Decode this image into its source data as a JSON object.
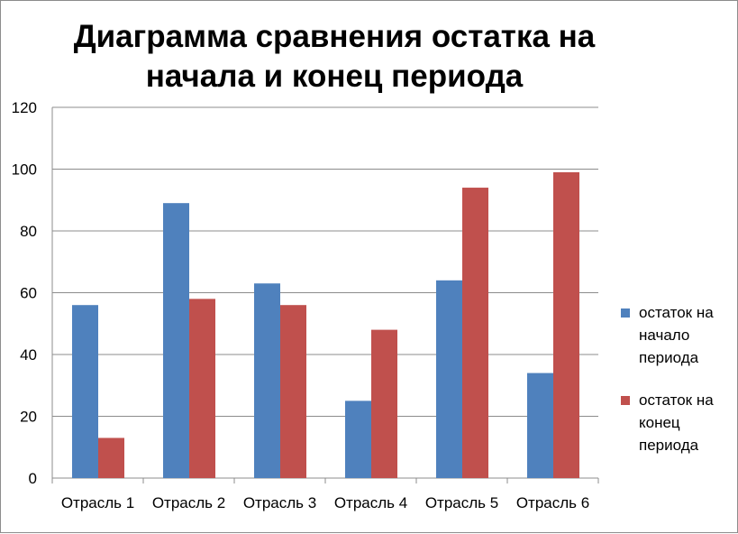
{
  "chart_data": {
    "type": "bar",
    "title_lines": [
      "Диаграмма сравнения остатка на",
      "начала и конец периода"
    ],
    "categories": [
      "Отрасль 1",
      "Отрасль 2",
      "Отрасль 3",
      "Отрасль 4",
      "Отрасль 5",
      "Отрасль 6"
    ],
    "series": [
      {
        "name_lines": [
          "остаток на",
          "начало",
          "периода"
        ],
        "color": "#4f81bd",
        "values": [
          56,
          89,
          63,
          25,
          64,
          34
        ]
      },
      {
        "name_lines": [
          "остаток на",
          "конец",
          "периода"
        ],
        "color": "#c0504d",
        "values": [
          13,
          58,
          56,
          48,
          94,
          99
        ]
      }
    ],
    "ylim": [
      0,
      120
    ],
    "yticks": [
      "0",
      "20",
      "40",
      "60",
      "80",
      "100",
      "120"
    ],
    "grid": true,
    "legend_position": "right"
  }
}
